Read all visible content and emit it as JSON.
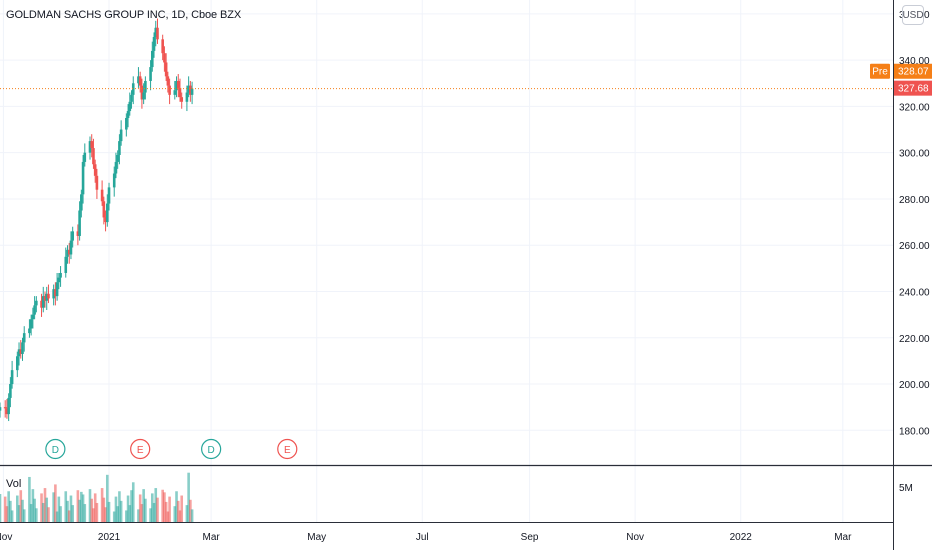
{
  "header": {
    "title": "GOLDMAN SACHS GROUP INC, 1D, Cboe BZX",
    "currency_button": "USD"
  },
  "volume_pane": {
    "label": "Vol",
    "axis_tick": "5M"
  },
  "price_tags": {
    "pre_label": "Pre",
    "pre_value": "328.07",
    "last_value": "327.68",
    "pre_color": "#f57f17",
    "last_color": "#ef5350"
  },
  "events": [
    {
      "letter": "D",
      "date": "2020-12-01",
      "color": "#26a69a"
    },
    {
      "letter": "E",
      "date": "2021-01-19",
      "color": "#ef5350"
    },
    {
      "letter": "D",
      "date": "2021-03-01",
      "color": "#26a69a"
    },
    {
      "letter": "E",
      "date": "2021-04-14",
      "color": "#ef5350"
    }
  ],
  "colors": {
    "up": "#26a69a",
    "down": "#ef5350",
    "grid": "#f0f3fa",
    "axis_text": "#131722"
  },
  "chart_data": {
    "type": "candlestick",
    "title": "GOLDMAN SACHS GROUP INC, 1D, Cboe BZX",
    "y_ticks": [
      180,
      200,
      220,
      240,
      260,
      280,
      300,
      320,
      340,
      360
    ],
    "y_tick_labels": [
      "180.00",
      "200.00",
      "220.00",
      "240.00",
      "260.00",
      "280.00",
      "300.00",
      "320.00",
      "340.00",
      "360.00"
    ],
    "ylim": [
      165,
      366
    ],
    "x_labels": [
      {
        "label": "Nov",
        "date": "2020-11-01"
      },
      {
        "label": "2021",
        "date": "2021-01-01"
      },
      {
        "label": "Mar",
        "date": "2021-03-01"
      },
      {
        "label": "May",
        "date": "2021-05-01"
      },
      {
        "label": "Jul",
        "date": "2021-07-01"
      },
      {
        "label": "Sep",
        "date": "2021-09-01"
      },
      {
        "label": "Nov",
        "date": "2021-11-01"
      },
      {
        "label": "2022",
        "date": "2022-01-01"
      },
      {
        "label": "Mar",
        "date": "2022-03-01"
      }
    ],
    "xlim": [
      "2020-10-30",
      "2022-03-30"
    ],
    "start_date": "2020-10-30",
    "grid": true,
    "closes": [
      190,
      189.5,
      187,
      194,
      200,
      206,
      212,
      215,
      213,
      218,
      222,
      224,
      228,
      230,
      234,
      236,
      233,
      238,
      236,
      239,
      237,
      241,
      238,
      244,
      246,
      248,
      255,
      258,
      256,
      262,
      266,
      264,
      275,
      282,
      296,
      300,
      305,
      302,
      295,
      290,
      284,
      279,
      272,
      270,
      278,
      285,
      291,
      296,
      299,
      305,
      310,
      315,
      318,
      322,
      325,
      330,
      333,
      329,
      323,
      326,
      331,
      337,
      344,
      350,
      354,
      349,
      343,
      339,
      333,
      329,
      325,
      327,
      331,
      328,
      324,
      322,
      326,
      329,
      325,
      327.68
    ],
    "last_close": 327.68,
    "pre_market": 328.07,
    "volume_ylim": [
      0,
      8000000
    ]
  }
}
